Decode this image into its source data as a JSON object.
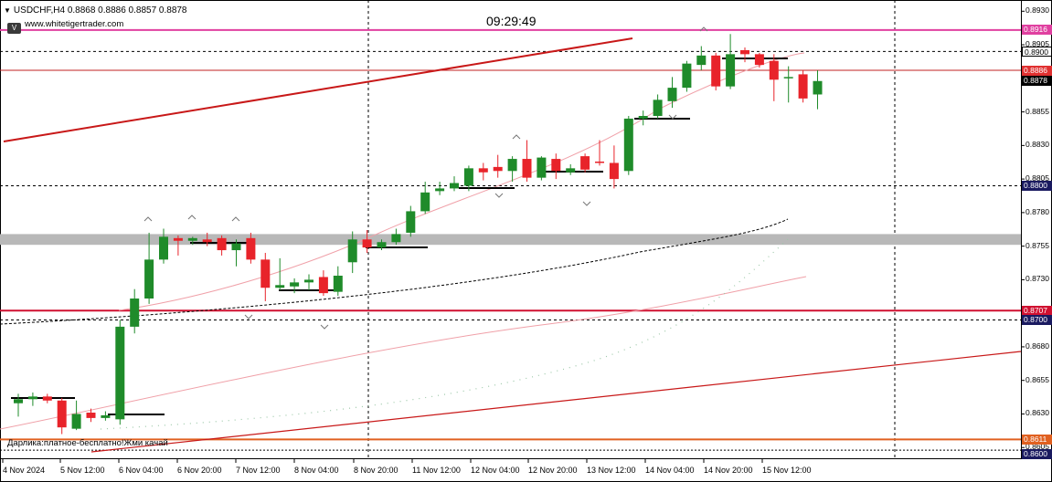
{
  "header": {
    "symbol_line": "USDCHF,H4  0.8868 0.8886 0.8857 0.8878",
    "website": "www.whitetigertrader.com",
    "button_label": "V"
  },
  "clock": "09:29:49",
  "note": "Дарлика:платное-бесплатно!Жми качай",
  "price_axis": {
    "ticks": [
      "0.8930",
      "0.8905",
      "0.8880",
      "0.8855",
      "0.8830",
      "0.8805",
      "0.8780",
      "0.8755",
      "0.8730",
      "0.8705",
      "0.8680",
      "0.8655",
      "0.8630",
      "0.8605"
    ],
    "labels": [
      {
        "text": "0.8916",
        "bg": "#e040a0",
        "fg": "#ffffff",
        "price": 0.8916
      },
      {
        "text": "0.8900",
        "bg": "#ffffff",
        "fg": "#000000",
        "price": 0.89
      },
      {
        "text": "0.8886",
        "bg": "#e03030",
        "fg": "#ffffff",
        "price": 0.8886
      },
      {
        "text": "0.8878",
        "bg": "#000000",
        "fg": "#ffffff",
        "price": 0.8878
      },
      {
        "text": "0.8800",
        "bg": "#1a1a60",
        "fg": "#ffffff",
        "price": 0.88
      },
      {
        "text": "0.8707",
        "bg": "#d01030",
        "fg": "#ffffff",
        "price": 0.8707
      },
      {
        "text": "0.8700",
        "bg": "#1a1a60",
        "fg": "#ffffff",
        "price": 0.87
      },
      {
        "text": "0.8611",
        "bg": "#e06020",
        "fg": "#ffffff",
        "price": 0.8611
      },
      {
        "text": "0.8600",
        "bg": "#1a1a60",
        "fg": "#ffffff",
        "price": 0.86
      }
    ]
  },
  "time_axis": [
    "4 Nov 2024",
    "5 Nov 12:00",
    "6 Nov 04:00",
    "6 Nov 20:00",
    "7 Nov 12:00",
    "8 Nov 04:00",
    "8 Nov 20:00",
    "11 Nov 12:00",
    "12 Nov 04:00",
    "12 Nov 20:00",
    "13 Nov 12:00",
    "14 Nov 04:00",
    "14 Nov 20:00",
    "15 Nov 12:00"
  ],
  "colors": {
    "bull": "#1f8b2a",
    "bear": "#e8232a",
    "grid": "#000000",
    "band": "#b8b8b8"
  },
  "chart_data": {
    "type": "candlestick",
    "symbol": "USDCHF",
    "timeframe": "H4",
    "ylim": [
      0.8597,
      0.8937
    ],
    "candles": [
      {
        "o": 0.8638,
        "h": 0.8645,
        "l": 0.8628,
        "c": 0.8641
      },
      {
        "o": 0.8641,
        "h": 0.8646,
        "l": 0.8636,
        "c": 0.8643
      },
      {
        "o": 0.8643,
        "h": 0.8645,
        "l": 0.8638,
        "c": 0.864
      },
      {
        "o": 0.864,
        "h": 0.8642,
        "l": 0.8615,
        "c": 0.862
      },
      {
        "o": 0.8619,
        "h": 0.864,
        "l": 0.8618,
        "c": 0.863
      },
      {
        "o": 0.8631,
        "h": 0.8634,
        "l": 0.8624,
        "c": 0.8627
      },
      {
        "o": 0.8627,
        "h": 0.8632,
        "l": 0.8625,
        "c": 0.8629
      },
      {
        "o": 0.8626,
        "h": 0.87,
        "l": 0.8622,
        "c": 0.8695
      },
      {
        "o": 0.8695,
        "h": 0.8723,
        "l": 0.869,
        "c": 0.8716
      },
      {
        "o": 0.8716,
        "h": 0.8765,
        "l": 0.8712,
        "c": 0.8745
      },
      {
        "o": 0.8745,
        "h": 0.8768,
        "l": 0.8742,
        "c": 0.8762
      },
      {
        "o": 0.8761,
        "h": 0.8763,
        "l": 0.8748,
        "c": 0.8759
      },
      {
        "o": 0.8759,
        "h": 0.8762,
        "l": 0.8756,
        "c": 0.8761
      },
      {
        "o": 0.876,
        "h": 0.8765,
        "l": 0.8755,
        "c": 0.8758
      },
      {
        "o": 0.8761,
        "h": 0.8763,
        "l": 0.8748,
        "c": 0.8752
      },
      {
        "o": 0.8752,
        "h": 0.876,
        "l": 0.874,
        "c": 0.8757
      },
      {
        "o": 0.8761,
        "h": 0.8765,
        "l": 0.8742,
        "c": 0.8745
      },
      {
        "o": 0.8745,
        "h": 0.875,
        "l": 0.8714,
        "c": 0.8724
      },
      {
        "o": 0.8724,
        "h": 0.8746,
        "l": 0.8722,
        "c": 0.8726
      },
      {
        "o": 0.8725,
        "h": 0.8731,
        "l": 0.872,
        "c": 0.8728
      },
      {
        "o": 0.8728,
        "h": 0.8734,
        "l": 0.8722,
        "c": 0.873
      },
      {
        "o": 0.8732,
        "h": 0.8737,
        "l": 0.8718,
        "c": 0.872
      },
      {
        "o": 0.8721,
        "h": 0.874,
        "l": 0.8718,
        "c": 0.8733
      },
      {
        "o": 0.8743,
        "h": 0.8766,
        "l": 0.8735,
        "c": 0.876
      },
      {
        "o": 0.876,
        "h": 0.8767,
        "l": 0.875,
        "c": 0.8754
      },
      {
        "o": 0.8754,
        "h": 0.876,
        "l": 0.8752,
        "c": 0.8758
      },
      {
        "o": 0.8758,
        "h": 0.8768,
        "l": 0.8756,
        "c": 0.8764
      },
      {
        "o": 0.8765,
        "h": 0.8785,
        "l": 0.8762,
        "c": 0.8781
      },
      {
        "o": 0.8781,
        "h": 0.8803,
        "l": 0.8779,
        "c": 0.8795
      },
      {
        "o": 0.8796,
        "h": 0.8803,
        "l": 0.8793,
        "c": 0.8798
      },
      {
        "o": 0.8798,
        "h": 0.8807,
        "l": 0.8796,
        "c": 0.8802
      },
      {
        "o": 0.88,
        "h": 0.8815,
        "l": 0.8796,
        "c": 0.8813
      },
      {
        "o": 0.8813,
        "h": 0.8817,
        "l": 0.8804,
        "c": 0.881
      },
      {
        "o": 0.8814,
        "h": 0.8823,
        "l": 0.8806,
        "c": 0.8811
      },
      {
        "o": 0.8811,
        "h": 0.8822,
        "l": 0.8803,
        "c": 0.882
      },
      {
        "o": 0.882,
        "h": 0.8834,
        "l": 0.8803,
        "c": 0.8806
      },
      {
        "o": 0.8806,
        "h": 0.8822,
        "l": 0.8804,
        "c": 0.8821
      },
      {
        "o": 0.882,
        "h": 0.8824,
        "l": 0.8805,
        "c": 0.8811
      },
      {
        "o": 0.881,
        "h": 0.8816,
        "l": 0.8808,
        "c": 0.8813
      },
      {
        "o": 0.8822,
        "h": 0.8824,
        "l": 0.881,
        "c": 0.8812
      },
      {
        "o": 0.8818,
        "h": 0.8834,
        "l": 0.8815,
        "c": 0.8817
      },
      {
        "o": 0.8817,
        "h": 0.883,
        "l": 0.8798,
        "c": 0.8805
      },
      {
        "o": 0.8811,
        "h": 0.8852,
        "l": 0.8808,
        "c": 0.885
      },
      {
        "o": 0.885,
        "h": 0.8856,
        "l": 0.8845,
        "c": 0.8852
      },
      {
        "o": 0.8852,
        "h": 0.8868,
        "l": 0.885,
        "c": 0.8864
      },
      {
        "o": 0.8863,
        "h": 0.8881,
        "l": 0.8858,
        "c": 0.8873
      },
      {
        "o": 0.8873,
        "h": 0.8893,
        "l": 0.887,
        "c": 0.8891
      },
      {
        "o": 0.889,
        "h": 0.8904,
        "l": 0.8886,
        "c": 0.8897
      },
      {
        "o": 0.8897,
        "h": 0.8899,
        "l": 0.8871,
        "c": 0.8874
      },
      {
        "o": 0.8874,
        "h": 0.8913,
        "l": 0.8872,
        "c": 0.8898
      },
      {
        "o": 0.8901,
        "h": 0.8903,
        "l": 0.8892,
        "c": 0.8898
      },
      {
        "o": 0.8898,
        "h": 0.8899,
        "l": 0.8888,
        "c": 0.889
      },
      {
        "o": 0.8893,
        "h": 0.8898,
        "l": 0.8863,
        "c": 0.8879
      },
      {
        "o": 0.888,
        "h": 0.8889,
        "l": 0.8862,
        "c": 0.8881
      },
      {
        "o": 0.8883,
        "h": 0.8886,
        "l": 0.8862,
        "c": 0.8865
      },
      {
        "o": 0.8868,
        "h": 0.8886,
        "l": 0.8857,
        "c": 0.8878
      }
    ]
  }
}
